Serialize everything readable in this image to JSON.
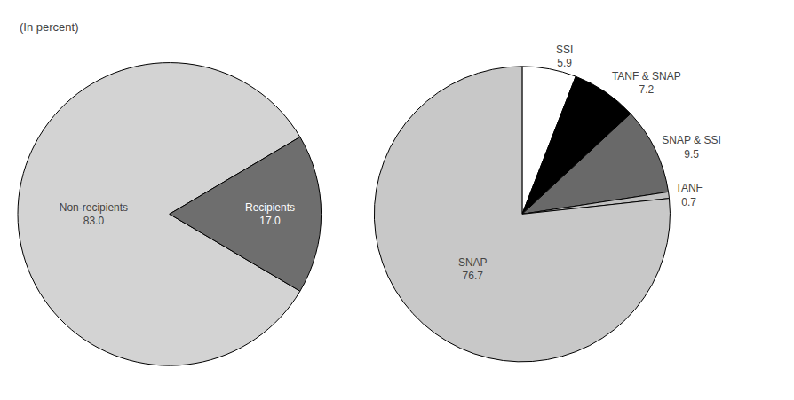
{
  "chart_data": [
    {
      "type": "pie",
      "subtitle": "(In percent)",
      "categories": [
        "Non-recipients",
        "Recipients"
      ],
      "values": [
        83.0,
        17.0
      ],
      "value_labels": [
        "83.0",
        "17.0"
      ],
      "colors": [
        "#d3d3d3",
        "#6e6e6e"
      ],
      "data_labels": true
    },
    {
      "type": "pie",
      "categories": [
        "SSI",
        "TANF & SNAP",
        "SNAP & SSI",
        "TANF",
        "SNAP"
      ],
      "values": [
        5.9,
        7.2,
        9.5,
        0.7,
        76.7
      ],
      "colors": [
        "#ffffff",
        "#000000",
        "#696969",
        "#c0c0c0",
        "#c8c8c8"
      ],
      "data_labels": true
    }
  ]
}
